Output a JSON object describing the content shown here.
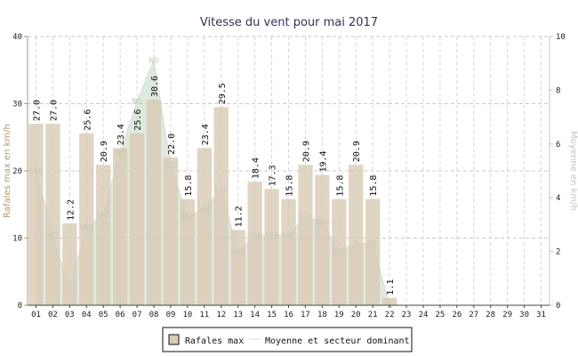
{
  "chart_data": {
    "type": "bar",
    "title": "Vitesse du vent pour mai 2017",
    "ylabel_left": "Rafales max en km/h",
    "ylabel_right": "Moyenne en km/h",
    "ylim_left": [
      0,
      40
    ],
    "ylim_right": [
      0,
      10
    ],
    "yticks_left": [
      "0",
      "10",
      "20",
      "30",
      "40"
    ],
    "yticks_right": [
      "0",
      "2",
      "4",
      "6",
      "8",
      "10"
    ],
    "categories": [
      "01",
      "02",
      "03",
      "04",
      "05",
      "06",
      "07",
      "08",
      "09",
      "10",
      "11",
      "12",
      "13",
      "14",
      "15",
      "16",
      "17",
      "18",
      "19",
      "20",
      "21",
      "22",
      "23",
      "24",
      "25",
      "26",
      "27",
      "28",
      "29",
      "30",
      "31"
    ],
    "series": [
      {
        "name": "Rafales max",
        "type": "bar",
        "color": "#d9cbb5",
        "values": [
          27.0,
          27.0,
          12.2,
          25.6,
          20.9,
          23.4,
          25.6,
          30.6,
          22.0,
          15.8,
          23.4,
          29.5,
          11.2,
          18.4,
          17.3,
          15.8,
          20.9,
          19.4,
          15.8,
          20.9,
          15.8,
          1.1,
          null,
          null,
          null,
          null,
          null,
          null,
          null,
          null,
          null
        ],
        "labels": [
          "27.0",
          "27.0",
          "12.2",
          "25.6",
          "20.9",
          "23.4",
          "25.6",
          "30.6",
          "22.0",
          "15.8",
          "23.4",
          "29.5",
          "11.2",
          "18.4",
          "17.3",
          "15.8",
          "20.9",
          "19.4",
          "15.8",
          "20.9",
          "15.8",
          "1.1",
          "",
          "",
          "",
          "",
          "",
          "",
          "",
          "",
          ""
        ]
      },
      {
        "name": "Moyenne et secteur dominant",
        "type": "area",
        "color": "#dfeadf",
        "values": [
          5.0,
          2.6,
          0.6,
          2.9,
          3.4,
          5.7,
          7.6,
          9.1,
          5.2,
          3.3,
          3.6,
          4.3,
          2.0,
          2.6,
          2.6,
          2.6,
          3.3,
          3.1,
          2.0,
          2.3,
          2.3,
          0.0,
          null,
          null,
          null,
          null,
          null,
          null,
          null,
          null,
          null
        ],
        "sectors": [
          "SSE",
          "NO",
          "",
          "NNO",
          "NNE",
          "NO",
          "NO",
          "NO",
          "NNE",
          "ENE",
          "SSE",
          "SSE",
          "SSO",
          "SSO",
          "SSE",
          "SSE",
          "SSE",
          "NNO",
          "OSO",
          "S",
          "SE",
          "N",
          "",
          "",
          "",
          "",
          "",
          "",
          "",
          "",
          ""
        ]
      }
    ],
    "legend": {
      "position": "bottom-center",
      "items": [
        "Rafales max",
        "Moyenne et secteur dominant"
      ]
    },
    "grid": true
  }
}
